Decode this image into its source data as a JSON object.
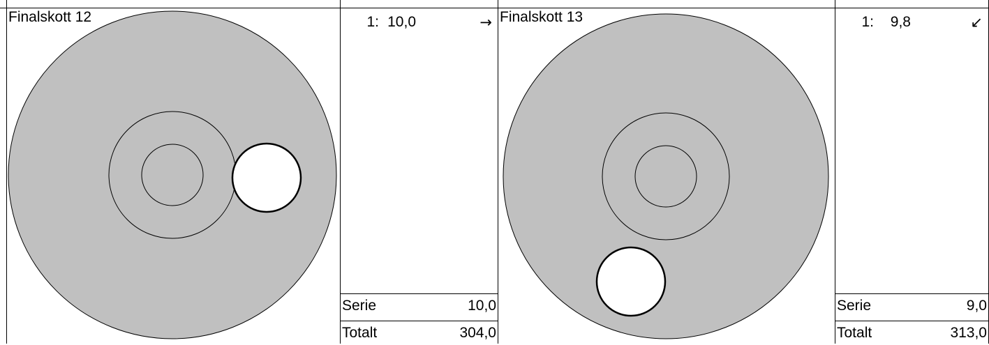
{
  "panels": [
    {
      "title": "Finalskott 12",
      "shot": {
        "number": "1:",
        "value": "10,0",
        "direction_icon": "arrow-right-icon",
        "glyph": "→"
      },
      "serie_label": "Serie",
      "serie_value": "10,0",
      "total_label": "Totalt",
      "total_value": "304,0"
    },
    {
      "title": "Finalskott 13",
      "shot": {
        "number": "1:",
        "value": "9,8",
        "direction_icon": "arrow-down-left-icon",
        "glyph": "↙"
      },
      "serie_label": "Serie",
      "serie_value": "9,0",
      "total_label": "Totalt",
      "total_value": "313,0"
    }
  ],
  "colors": {
    "target_fill": "#c0c0c0",
    "ring_stroke": "#000000",
    "shot_fill": "#ffffff",
    "background": "#ffffff"
  }
}
